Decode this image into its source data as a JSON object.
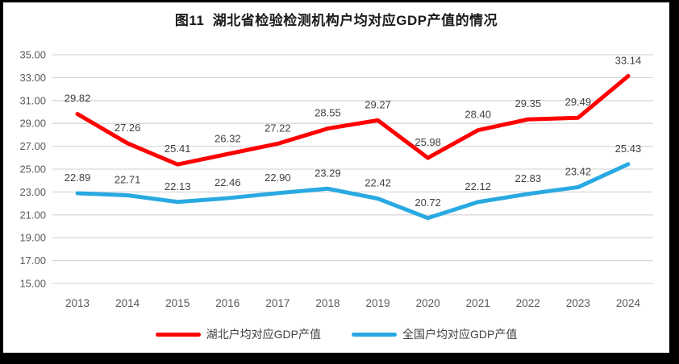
{
  "title": "图11  湖北省检验检测机构户均对应GDP产值的情况",
  "chart_data": {
    "type": "line",
    "title": "图11  湖北省检验检测机构户均对应GDP产值的情况",
    "categories": [
      "2013",
      "2014",
      "2015",
      "2016",
      "2017",
      "2018",
      "2019",
      "2020",
      "2021",
      "2022",
      "2023",
      "2024"
    ],
    "series": [
      {
        "name": "湖北户均对应GDP产值",
        "color": "#FE0000",
        "values": [
          29.82,
          27.26,
          25.41,
          26.32,
          27.22,
          28.55,
          29.27,
          25.98,
          28.4,
          29.35,
          29.49,
          33.14
        ]
      },
      {
        "name": "全国户均对应GDP产值",
        "color": "#29A9E1",
        "values": [
          22.89,
          22.71,
          22.13,
          22.46,
          22.9,
          23.29,
          22.42,
          20.72,
          22.12,
          22.83,
          23.42,
          25.43
        ]
      }
    ],
    "ylim": [
      15,
      35
    ],
    "ytick_step": 2,
    "ytick_labels": [
      "35.00",
      "33.00",
      "31.00",
      "29.00",
      "27.00",
      "25.00",
      "23.00",
      "21.00",
      "19.00",
      "17.00",
      "15.00"
    ],
    "value_decimals": 2,
    "grid": true,
    "legend_position": "bottom",
    "colors": {
      "gridline": "#D9D9D9",
      "axis_text": "#595959",
      "label_text": "#404040",
      "title_text": "#1a1a1a"
    }
  }
}
